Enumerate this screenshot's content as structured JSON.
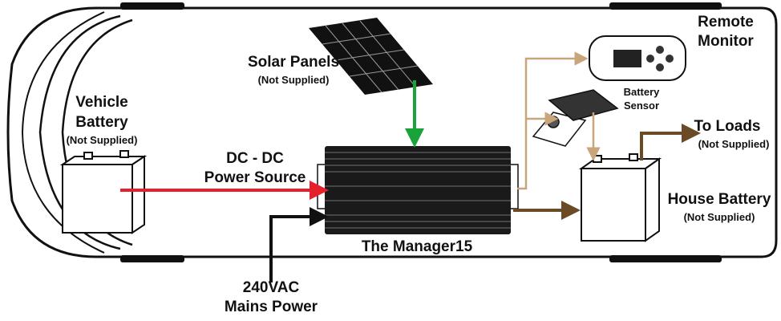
{
  "solar": {
    "lines": [
      "Solar Panels"
    ],
    "note": "(Not Supplied)"
  },
  "remote": {
    "lines": [
      "Remote",
      "Monitor"
    ]
  },
  "sensor": {
    "lines": [
      "Battery",
      "Sensor"
    ]
  },
  "vehicle": {
    "lines": [
      "Vehicle",
      "Battery"
    ],
    "note": "(Not Supplied)"
  },
  "dcdc": {
    "lines": [
      "DC - DC",
      "Power Source"
    ]
  },
  "loads": {
    "lines": [
      "To Loads"
    ],
    "note": "(Not Supplied)"
  },
  "house": {
    "lines": [
      "House Battery"
    ],
    "note": "(Not Supplied)"
  },
  "manager": {
    "lines": [
      "The Manager15"
    ]
  },
  "mains": {
    "lines": [
      "240VAC",
      "Mains Power"
    ]
  }
}
